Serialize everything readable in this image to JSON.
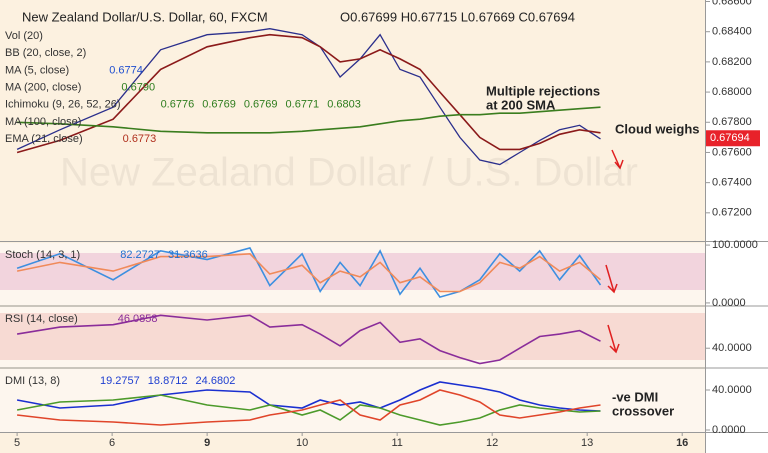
{
  "chart_data": [
    {
      "type": "line",
      "title": "New Zealand Dollar/U.S. Dollar, 60, FXCM",
      "ohlc": "O0.67699 H0.67715 L0.67669 C0.67694",
      "watermark": "New Zealand Dollar / U.S. Dollar",
      "legend_lines": [
        {
          "label": "Vol (20)",
          "values": [],
          "color": "#888"
        },
        {
          "label": "BB (20, close, 2)",
          "values": [],
          "color": "#888"
        },
        {
          "label": "MA (5, close)",
          "values": [
            "0.6774"
          ],
          "color": "#1f4fd0"
        },
        {
          "label": "MA (200, close)",
          "values": [
            "0.6790"
          ],
          "color": "#2e7d1e"
        },
        {
          "label": "Ichimoku (9, 26, 52, 26)",
          "values": [
            "0.6776",
            "0.6769",
            "0.6769",
            "0.6771",
            "0.6803"
          ],
          "color": "#2e7d1e"
        },
        {
          "label": "MA (100, close)",
          "values": [],
          "color": "#888"
        },
        {
          "label": "EMA (21, close)",
          "values": [
            "0.6773"
          ],
          "color": "#b0301e"
        }
      ],
      "annotations": [
        "Multiple rejections",
        "at 200 SMA",
        "Cloud weighs"
      ],
      "last_price": {
        "value": 0.67694,
        "label": "0.67694"
      },
      "x": [
        0,
        0.45,
        1.01,
        1.51,
        2,
        2.45,
        2.66,
        3,
        3.19,
        3.4,
        3.61,
        3.82,
        4.03,
        4.24,
        4.45,
        4.66,
        4.87,
        5.08,
        5.29,
        5.5,
        5.71,
        5.92,
        6.14
      ],
      "series": [
        {
          "color": "#2b2f8c",
          "values": [
            0.6762,
            0.6775,
            0.679,
            0.6828,
            0.6838,
            0.684,
            0.6842,
            0.6838,
            0.683,
            0.681,
            0.6822,
            0.6838,
            0.6815,
            0.681,
            0.679,
            0.677,
            0.6755,
            0.6752,
            0.676,
            0.6768,
            0.6775,
            0.6778,
            0.6769
          ]
        },
        {
          "name": "EMA (21, close)",
          "color": "#8b1a1a",
          "values": [
            0.676,
            0.6768,
            0.6782,
            0.6815,
            0.683,
            0.6836,
            0.6838,
            0.6836,
            0.683,
            0.682,
            0.6822,
            0.6828,
            0.6822,
            0.6815,
            0.68,
            0.6785,
            0.677,
            0.6762,
            0.6762,
            0.6766,
            0.6772,
            0.6775,
            0.6773
          ]
        },
        {
          "name": "MA (200, close)",
          "color": "#3a7d1e",
          "values": [
            0.678,
            0.6779,
            0.6777,
            0.6774,
            0.6773,
            0.6773,
            0.6773,
            0.6774,
            0.6775,
            0.6776,
            0.6777,
            0.6779,
            0.6781,
            0.6782,
            0.6784,
            0.6785,
            0.6785,
            0.6786,
            0.6786,
            0.6787,
            0.6788,
            0.6789,
            0.679
          ]
        }
      ],
      "xlim": [
        -0.18,
        7.24
      ],
      "xticks": [
        {
          "value": 0,
          "label": "5"
        },
        {
          "value": 1,
          "label": "6"
        },
        {
          "value": 2,
          "label": "9"
        },
        {
          "value": 3,
          "label": "10"
        },
        {
          "value": 4,
          "label": "11"
        },
        {
          "value": 5,
          "label": "12"
        },
        {
          "value": 6,
          "label": "13"
        },
        {
          "value": 7,
          "label": "16"
        }
      ],
      "ylim": [
        0.6702,
        0.6861
      ],
      "yticks": [
        {
          "value": 0.672,
          "label": "0.67200"
        },
        {
          "value": 0.674,
          "label": "0.67400"
        },
        {
          "value": 0.676,
          "label": "0.67600"
        },
        {
          "value": 0.678,
          "label": "0.67800"
        },
        {
          "value": 0.68,
          "label": "0.68000"
        },
        {
          "value": 0.682,
          "label": "0.68200"
        },
        {
          "value": 0.684,
          "label": "0.68400"
        },
        {
          "value": 0.686,
          "label": "0.68600"
        }
      ]
    },
    {
      "type": "line",
      "legend_lines": [
        {
          "label": "Stoch (14, 3, 1)",
          "values": [
            "82.2727",
            "31.3636"
          ],
          "color": "#1f6fd0"
        }
      ],
      "x": [
        0,
        0.45,
        1.01,
        1.51,
        2,
        2.45,
        2.66,
        3,
        3.19,
        3.4,
        3.61,
        3.82,
        4.03,
        4.24,
        4.45,
        4.66,
        4.87,
        5.08,
        5.29,
        5.5,
        5.71,
        5.92,
        6.14
      ],
      "series": [
        {
          "color": "#3d8fe0",
          "values": [
            60,
            85,
            40,
            90,
            75,
            95,
            30,
            85,
            20,
            70,
            30,
            90,
            15,
            60,
            10,
            20,
            40,
            85,
            55,
            90,
            40,
            82,
            31
          ]
        },
        {
          "color": "#f08a5a",
          "values": [
            55,
            70,
            55,
            80,
            80,
            85,
            50,
            65,
            35,
            55,
            45,
            70,
            35,
            45,
            20,
            20,
            35,
            70,
            60,
            80,
            55,
            70,
            40
          ]
        }
      ],
      "ylim": [
        -3.6,
        103.6
      ],
      "yticks": [
        {
          "value": 0,
          "label": "0.0000"
        },
        {
          "value": 100,
          "label": "100.0000"
        }
      ]
    },
    {
      "type": "line",
      "legend_lines": [
        {
          "label": "RSI (14, close)",
          "values": [
            "46.0858"
          ],
          "color": "#8a2d9a"
        }
      ],
      "x": [
        0,
        0.45,
        1.01,
        1.51,
        2,
        2.45,
        2.66,
        3,
        3.19,
        3.4,
        3.61,
        3.82,
        4.03,
        4.24,
        4.45,
        4.66,
        4.87,
        5.08,
        5.29,
        5.5,
        5.71,
        5.92,
        6.14
      ],
      "series": [
        {
          "color": "#8a2d9a",
          "values": [
            52,
            58,
            60,
            68,
            64,
            68,
            58,
            60,
            52,
            42,
            55,
            62,
            45,
            48,
            38,
            32,
            27,
            30,
            40,
            50,
            52,
            55,
            46
          ]
        }
      ],
      "ylim": [
        24,
        75.1
      ],
      "yticks": [
        {
          "value": 40,
          "label": "40.0000"
        }
      ]
    },
    {
      "type": "line",
      "legend_lines": [
        {
          "label": "DMI (13, 8)",
          "values": [
            "19.2757",
            "18.8712",
            "24.6802"
          ],
          "color": "#1f3fd0"
        }
      ],
      "annotations": [
        "-ve DMI",
        "crossover"
      ],
      "x": [
        0,
        0.45,
        1.01,
        1.51,
        2,
        2.45,
        2.66,
        3,
        3.19,
        3.4,
        3.61,
        3.82,
        4.03,
        4.24,
        4.45,
        4.66,
        4.87,
        5.08,
        5.29,
        5.5,
        5.71,
        5.92,
        6.14
      ],
      "series": [
        {
          "color": "#1a2fd0",
          "values": [
            30,
            22,
            25,
            35,
            40,
            38,
            25,
            22,
            30,
            25,
            28,
            22,
            30,
            40,
            48,
            45,
            42,
            38,
            30,
            25,
            22,
            20,
            19
          ]
        },
        {
          "color": "#4c9a2a",
          "values": [
            20,
            28,
            30,
            35,
            25,
            20,
            25,
            15,
            20,
            10,
            25,
            22,
            15,
            10,
            5,
            8,
            12,
            20,
            25,
            22,
            20,
            18,
            19
          ]
        },
        {
          "color": "#e0452a",
          "values": [
            15,
            10,
            8,
            5,
            8,
            10,
            15,
            20,
            25,
            30,
            15,
            10,
            25,
            30,
            40,
            35,
            28,
            15,
            12,
            15,
            18,
            22,
            25
          ]
        }
      ],
      "ylim": [
        -2,
        61
      ],
      "yticks": [
        {
          "value": 0,
          "label": "0.0000"
        },
        {
          "value": 40,
          "label": "40.0000"
        }
      ]
    }
  ]
}
